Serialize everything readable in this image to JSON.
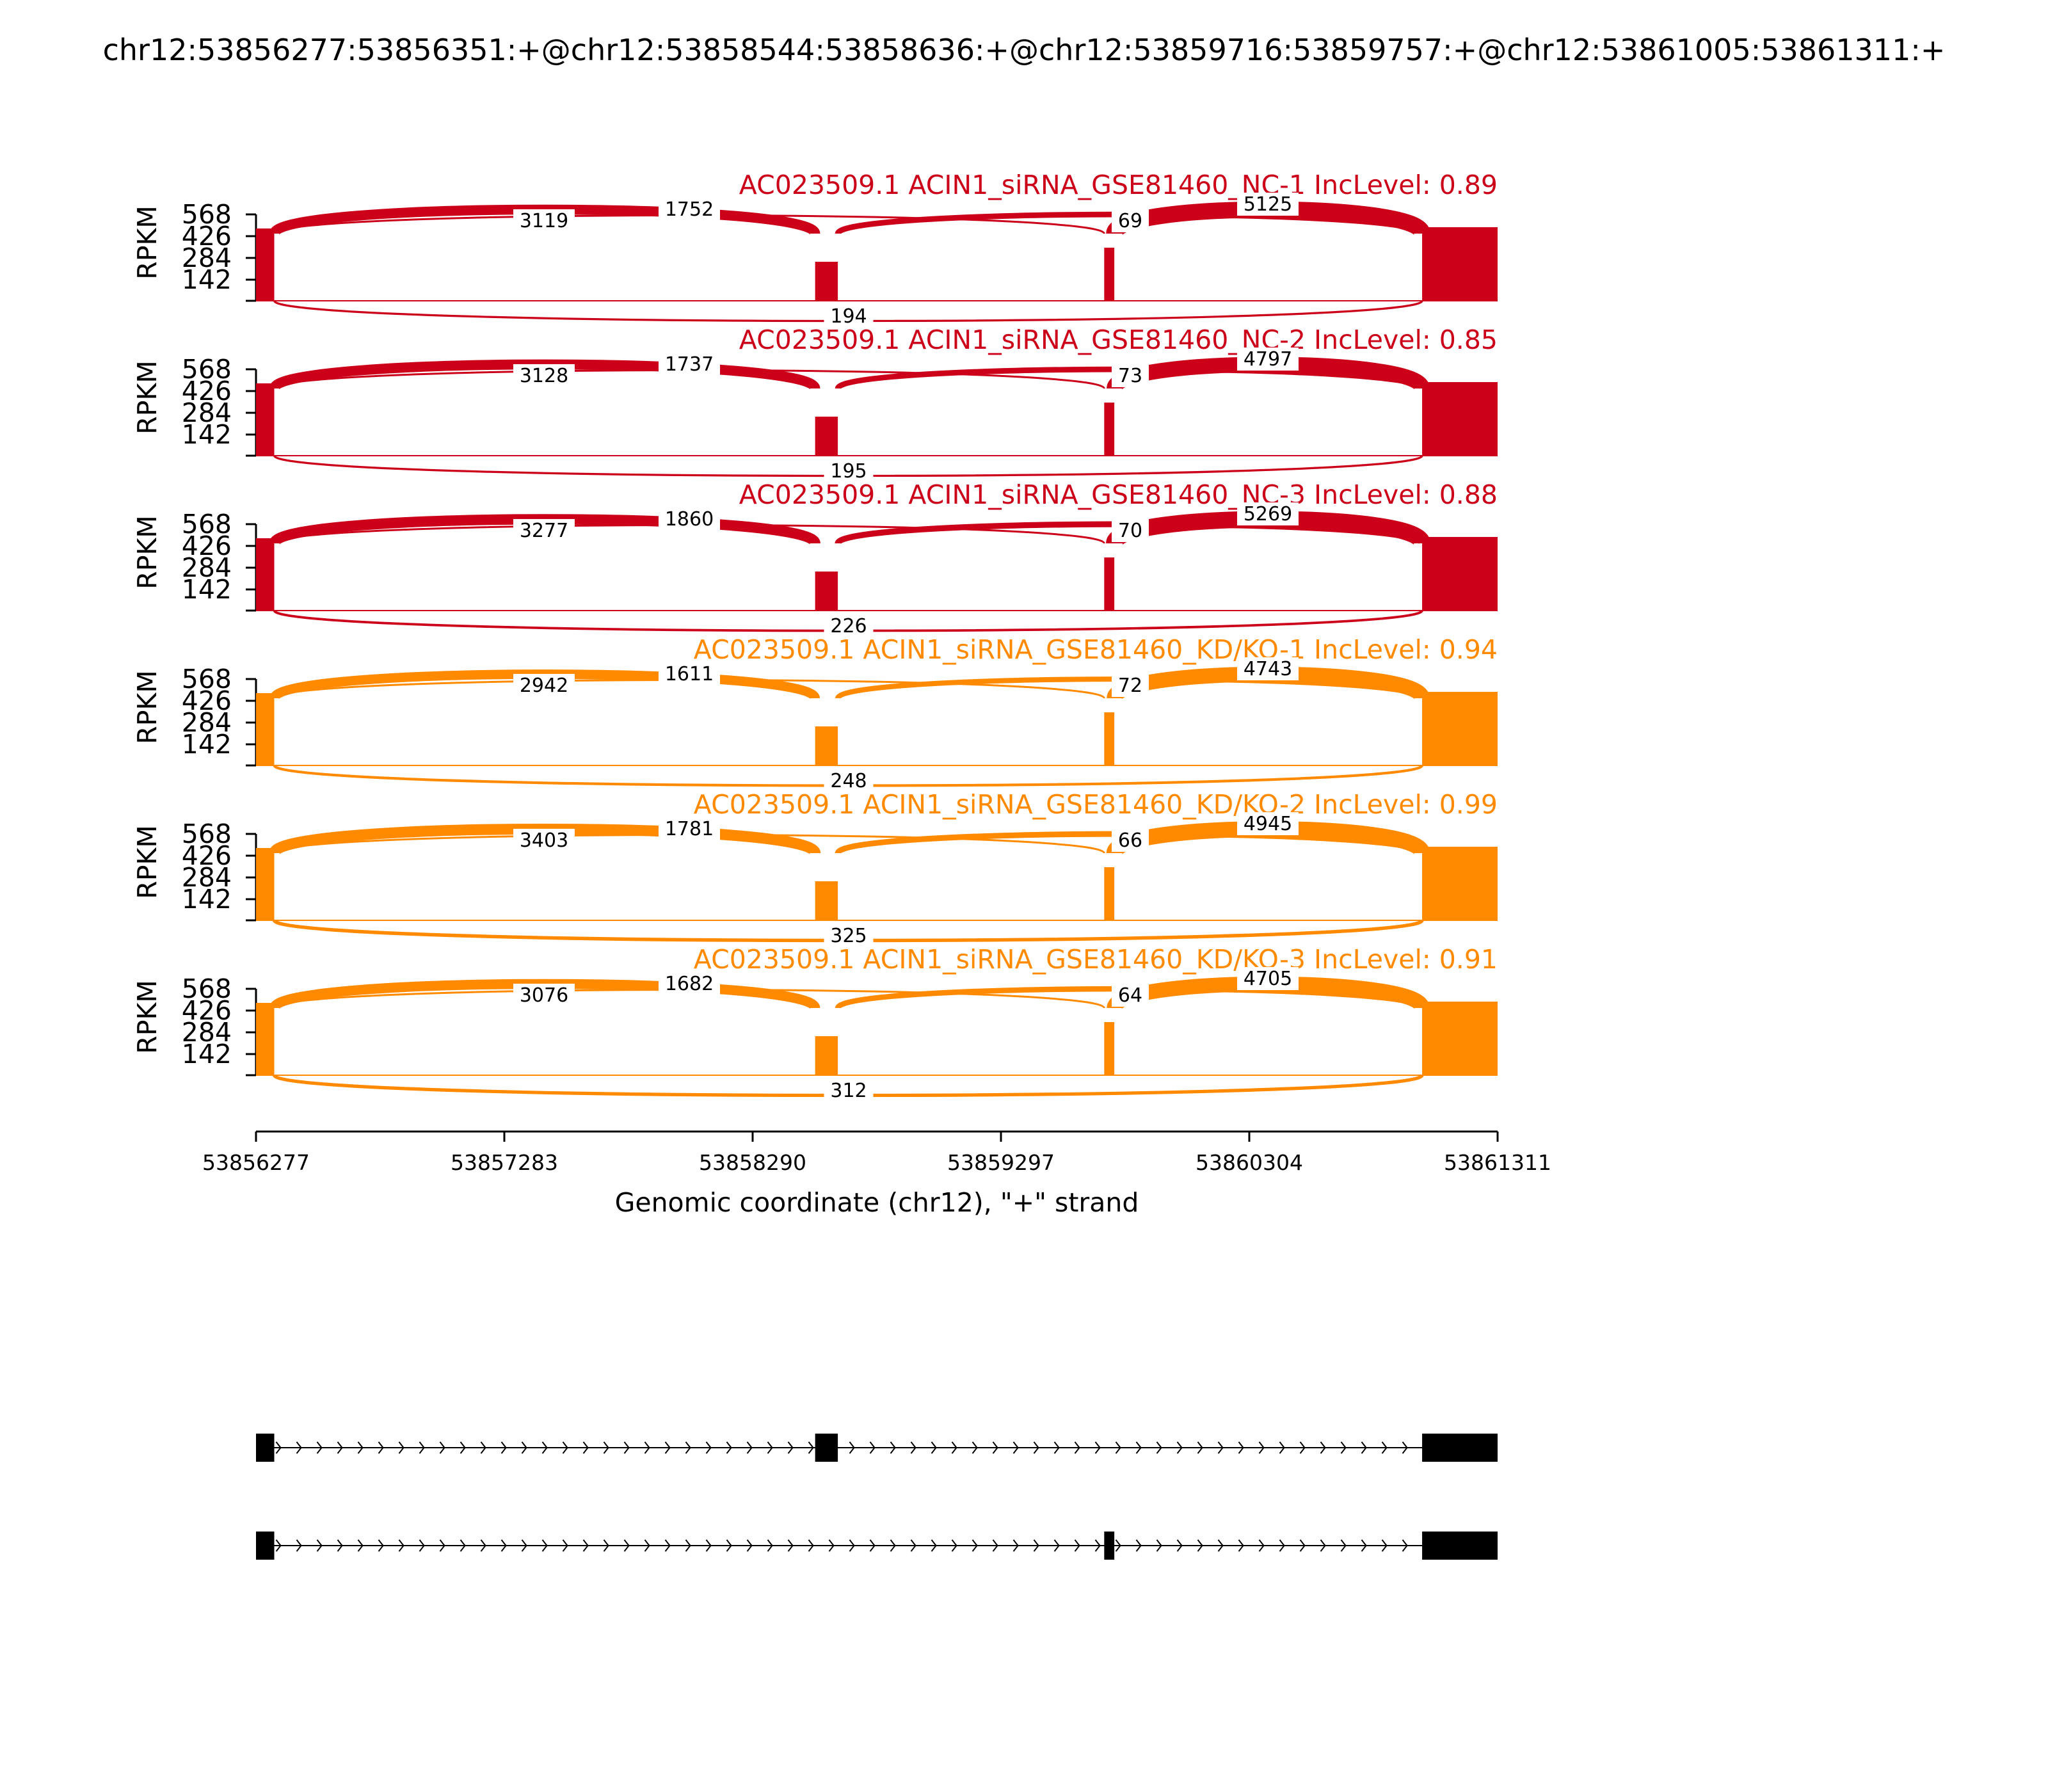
{
  "figure_title": "chr12:53856277:53856351:+@chr12:53858544:53858636:+@chr12:53859716:53859757:+@chr12:53861005:53861311:+",
  "xlabel": "Genomic coordinate (chr12), \"+\" strand",
  "colors": {
    "nc": "#cc0018",
    "kd": "#ff8a00",
    "gene": "#000000",
    "axis": "#000000",
    "label_bg": "#ffffff"
  },
  "chart_data": {
    "type": "sashimi",
    "xlim": [
      53856277,
      53861311
    ],
    "x_ticks": [
      "53856277",
      "53857283",
      "53858290",
      "53859297",
      "53860304",
      "53861311"
    ],
    "y_ticks": [
      "568",
      "426",
      "284",
      "142"
    ],
    "ylim": [
      0,
      568
    ],
    "ylabel": "RPKM",
    "grid": false,
    "exons": [
      {
        "start": 53856277,
        "end": 53856351
      },
      {
        "start": 53858544,
        "end": 53858636
      },
      {
        "start": 53859716,
        "end": 53859757
      },
      {
        "start": 53861005,
        "end": 53861311
      }
    ],
    "panels": [
      {
        "title": "AC023509.1 ACIN1_siRNA_GSE81460_NC-1 IncLevel: 0.89",
        "group": "nc",
        "junctions": {
          "e1_e2": "3119",
          "e2_e4": "1752",
          "e1_e3": "69",
          "e3_e4": "5125",
          "e1_e4": "194"
        }
      },
      {
        "title": "AC023509.1 ACIN1_siRNA_GSE81460_NC-2 IncLevel: 0.85",
        "group": "nc",
        "junctions": {
          "e1_e2": "3128",
          "e2_e4": "1737",
          "e1_e3": "73",
          "e3_e4": "4797",
          "e1_e4": "195"
        }
      },
      {
        "title": "AC023509.1 ACIN1_siRNA_GSE81460_NC-3 IncLevel: 0.88",
        "group": "nc",
        "junctions": {
          "e1_e2": "3277",
          "e2_e4": "1860",
          "e1_e3": "70",
          "e3_e4": "5269",
          "e1_e4": "226"
        }
      },
      {
        "title": "AC023509.1 ACIN1_siRNA_GSE81460_KD/KO-1 IncLevel: 0.94",
        "group": "kd",
        "junctions": {
          "e1_e2": "2942",
          "e2_e4": "1611",
          "e1_e3": "72",
          "e3_e4": "4743",
          "e1_e4": "248"
        }
      },
      {
        "title": "AC023509.1 ACIN1_siRNA_GSE81460_KD/KO-2 IncLevel: 0.99",
        "group": "kd",
        "junctions": {
          "e1_e2": "3403",
          "e2_e4": "1781",
          "e1_e3": "66",
          "e3_e4": "4945",
          "e1_e4": "325"
        }
      },
      {
        "title": "AC023509.1 ACIN1_siRNA_GSE81460_KD/KO-3 IncLevel: 0.91",
        "group": "kd",
        "junctions": {
          "e1_e2": "3076",
          "e2_e4": "1682",
          "e1_e3": "64",
          "e3_e4": "4705",
          "e1_e4": "312"
        }
      }
    ],
    "transcripts": [
      {
        "exons": [
          0,
          1,
          3
        ]
      },
      {
        "exons": [
          0,
          2,
          3
        ]
      }
    ]
  }
}
